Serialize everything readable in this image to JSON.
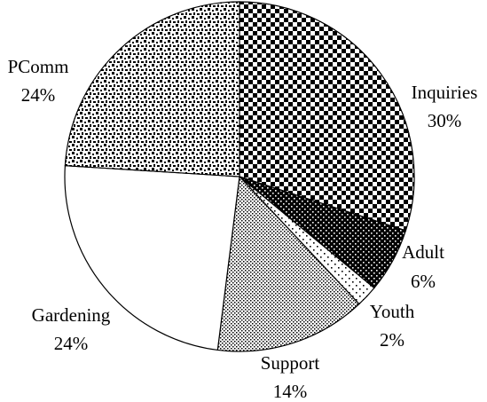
{
  "chart_data": {
    "type": "pie",
    "start_angle_deg": 0,
    "direction": "clockwise",
    "slices": [
      {
        "label": "Inquiries",
        "value": 30,
        "pct_label": "30%",
        "pattern": "checker-large"
      },
      {
        "label": "Adult",
        "value": 6,
        "pct_label": "6%",
        "pattern": "dots-dark"
      },
      {
        "label": "Youth",
        "value": 2,
        "pct_label": "2%",
        "pattern": "dots-sparse"
      },
      {
        "label": "Support",
        "value": 14,
        "pct_label": "14%",
        "pattern": "dots-fine"
      },
      {
        "label": "Gardening",
        "value": 24,
        "pct_label": "24%",
        "pattern": "none"
      },
      {
        "label": "PComm",
        "value": 24,
        "pct_label": "24%",
        "pattern": "confetti"
      }
    ],
    "colors": {
      "outline": "#000000",
      "background": "#ffffff"
    }
  }
}
